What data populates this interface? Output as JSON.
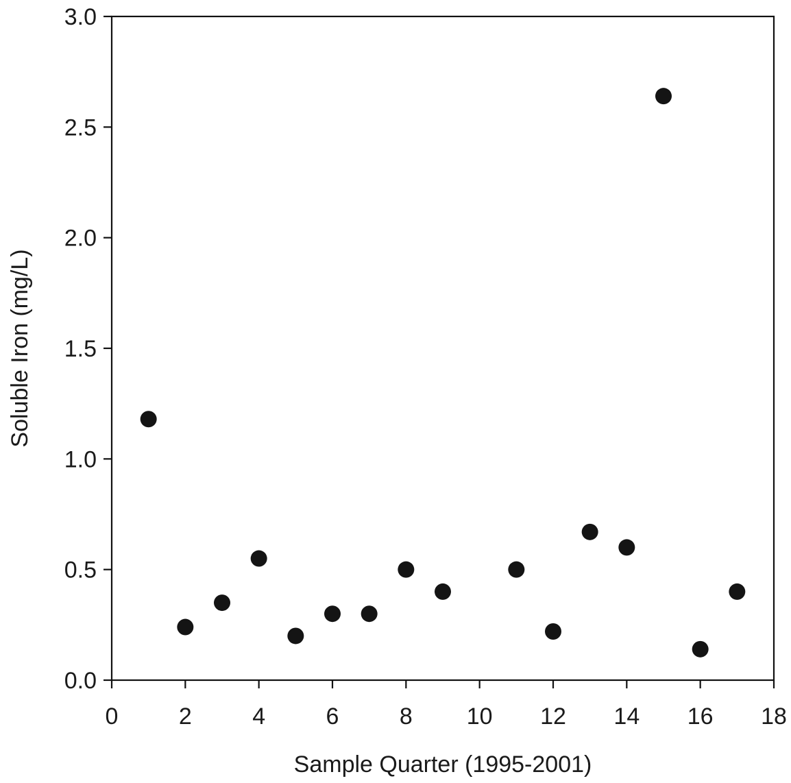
{
  "chart_data": {
    "type": "scatter",
    "title": "",
    "xlabel": "Sample Quarter (1995-2001)",
    "ylabel": "Soluble Iron (mg/L)",
    "xlim": [
      0,
      18
    ],
    "ylim": [
      0.0,
      3.0
    ],
    "grid": false,
    "x_ticks": [
      0,
      2,
      4,
      6,
      8,
      10,
      12,
      14,
      16,
      18
    ],
    "y_ticks": [
      0.0,
      0.5,
      1.0,
      1.5,
      2.0,
      2.5,
      3.0
    ],
    "x_tick_labels": [
      "0",
      "2",
      "4",
      "6",
      "8",
      "10",
      "12",
      "14",
      "16",
      "18"
    ],
    "y_tick_labels": [
      "0.0",
      "0.5",
      "1.0",
      "1.5",
      "2.0",
      "2.5",
      "3.0"
    ],
    "series": [
      {
        "color": "#141414",
        "x": [
          1,
          2,
          3,
          4,
          5,
          6,
          7,
          8,
          9,
          11,
          12,
          13,
          14,
          15,
          16,
          17
        ],
        "y": [
          1.18,
          0.24,
          0.35,
          0.55,
          0.2,
          0.3,
          0.3,
          0.5,
          0.4,
          0.5,
          0.22,
          0.67,
          0.6,
          2.64,
          0.14,
          0.4
        ]
      }
    ]
  }
}
